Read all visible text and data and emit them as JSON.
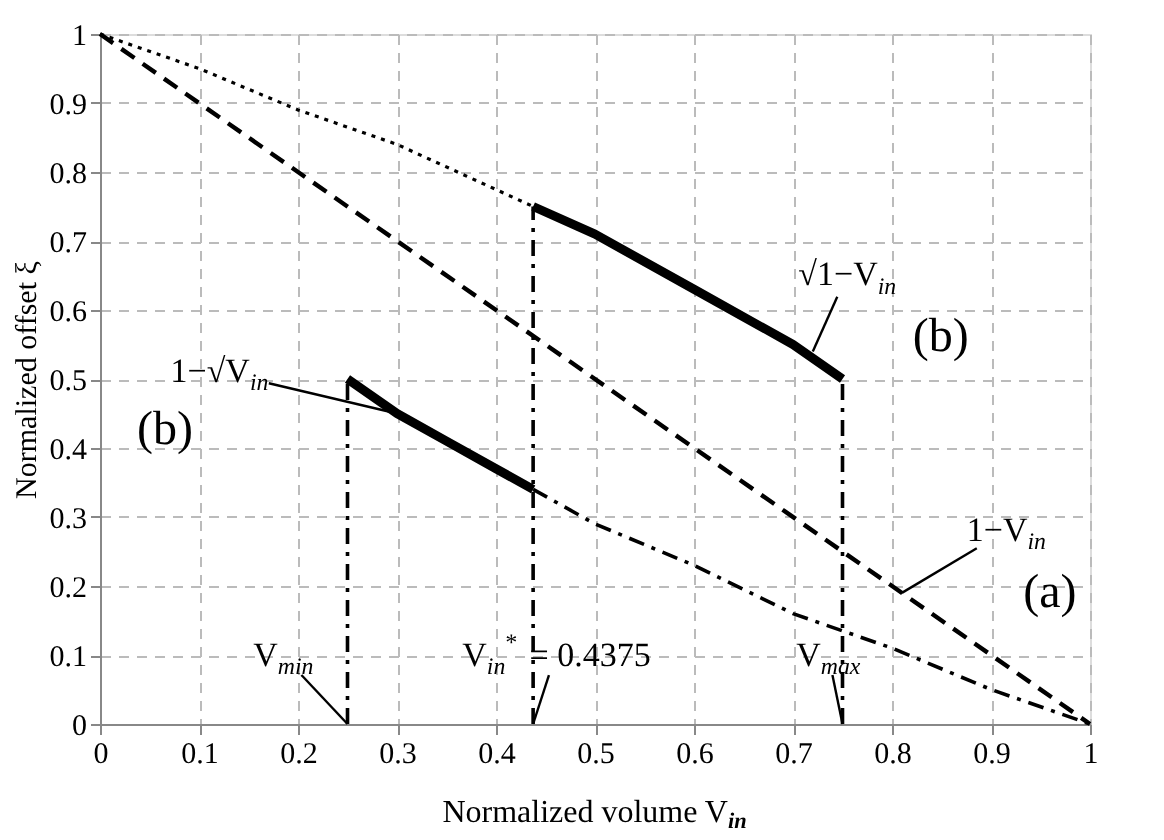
{
  "chart_data": {
    "type": "line",
    "xlabel": "Normalized volume V$_{in}$",
    "ylabel": "Normalized offset ξ",
    "xlim": [
      0,
      1
    ],
    "ylim": [
      0,
      1
    ],
    "xticks": [
      0,
      0.1,
      0.2,
      0.3,
      0.4,
      0.5,
      0.6,
      0.7,
      0.8,
      0.9,
      1
    ],
    "yticks": [
      0,
      0.1,
      0.2,
      0.3,
      0.4,
      0.5,
      0.6,
      0.7,
      0.8,
      0.9,
      1
    ],
    "grid": true,
    "marker": "none",
    "series": [
      {
        "color": "#000000",
        "line_style": "dashed",
        "x": [
          0,
          1
        ],
        "values": [
          1,
          0
        ]
      },
      {
        "color": "#000000",
        "line_style": "dotted",
        "x": [
          0,
          0.1,
          0.2,
          0.3,
          0.4375
        ],
        "values": [
          1,
          0.95,
          0.89,
          0.84,
          0.75
        ]
      },
      {
        "color": "#000000",
        "line_style": "solid",
        "x": [
          0.4375,
          0.5,
          0.6,
          0.7,
          0.75
        ],
        "values": [
          0.75,
          0.71,
          0.63,
          0.55,
          0.5
        ]
      },
      {
        "color": "#000000",
        "line_style": "solid",
        "x": [
          0.25,
          0.3,
          0.35,
          0.4,
          0.4375
        ],
        "values": [
          0.5,
          0.45,
          0.41,
          0.37,
          0.34
        ]
      },
      {
        "color": "#000000",
        "line_style": "dashdot",
        "x": [
          0.4375,
          0.5,
          0.6,
          0.7,
          0.8,
          0.9,
          1
        ],
        "values": [
          0.34,
          0.29,
          0.23,
          0.16,
          0.11,
          0.05,
          0
        ]
      },
      {
        "color": "#000000",
        "line_style": "dashdot",
        "x": [
          0.25,
          0.25
        ],
        "values": [
          0,
          0.5
        ]
      },
      {
        "color": "#000000",
        "line_style": "dashdot",
        "x": [
          0.4375,
          0.4375
        ],
        "values": [
          0,
          0.75
        ]
      },
      {
        "color": "#000000",
        "line_style": "dashdot",
        "x": [
          0.75,
          0.75
        ],
        "values": [
          0,
          0.5
        ]
      }
    ],
    "annotations": [
      {
        "text": "1−√V$_{in}$",
        "x": 0.3,
        "y": 0.45
      },
      "(b)",
      {
        "text": "√1−V$_{in}$",
        "x": 0.72,
        "y": 0.54
      },
      "(b)",
      {
        "text": "1−V$_{in}$",
        "x": 0.81,
        "y": 0.19
      },
      "(a)",
      {
        "text": "V$_{min}$",
        "x": 0.25,
        "y": 0
      },
      {
        "text": "V$_{in}$$^{*}$ = 0.4375",
        "x": 0.4375,
        "y": 0
      },
      {
        "text": "V$_{max}$",
        "x": 0.75,
        "y": 0
      }
    ]
  }
}
